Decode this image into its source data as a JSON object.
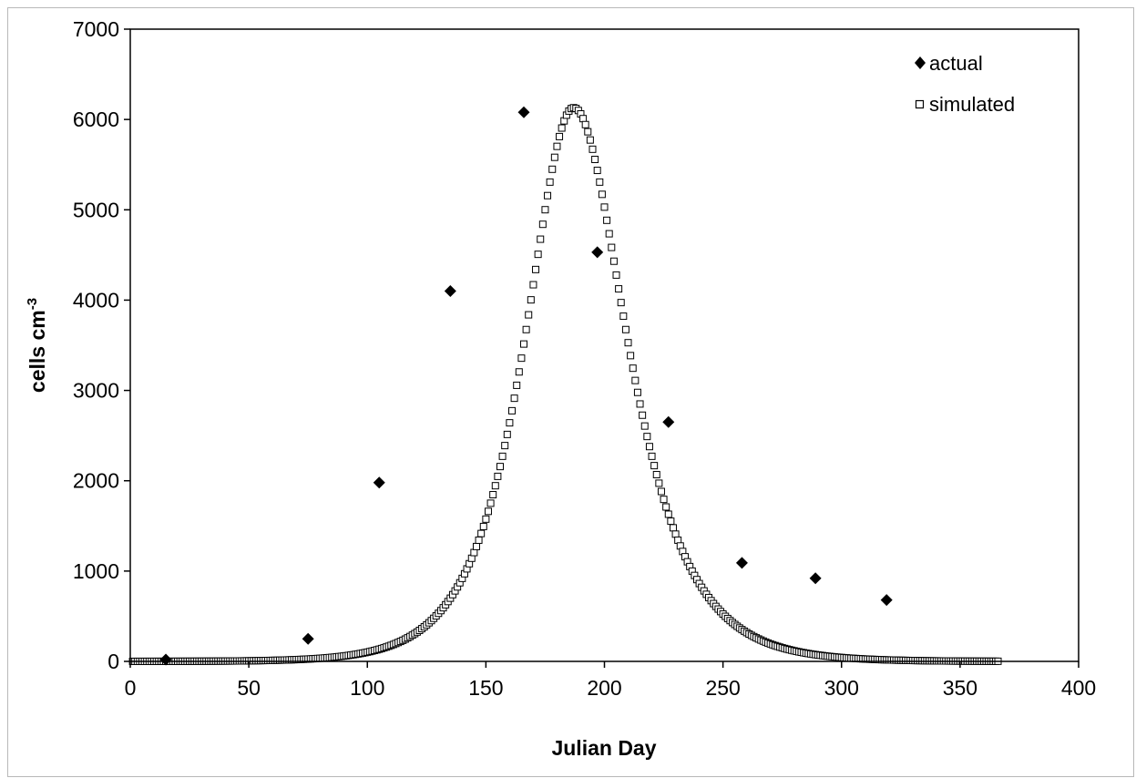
{
  "chart_data": {
    "type": "scatter",
    "title": "",
    "xlabel": "Julian Day",
    "ylabel": "cells cm",
    "ylabel_superscript": "-3",
    "xlim": [
      0,
      400
    ],
    "ylim": [
      0,
      7000
    ],
    "xticks": [
      0,
      50,
      100,
      150,
      200,
      250,
      300,
      350,
      400
    ],
    "yticks": [
      0,
      1000,
      2000,
      3000,
      4000,
      5000,
      6000,
      7000
    ],
    "grid": false,
    "legend_position": "top-right",
    "series": [
      {
        "name": "actual",
        "marker": "filled-diamond",
        "color": "#000000",
        "points": [
          [
            15,
            20
          ],
          [
            75,
            250
          ],
          [
            105,
            1980
          ],
          [
            135,
            4100
          ],
          [
            166,
            6080
          ],
          [
            197,
            4530
          ],
          [
            227,
            2650
          ],
          [
            258,
            1090
          ],
          [
            289,
            920
          ],
          [
            319,
            680
          ]
        ]
      },
      {
        "name": "simulated",
        "marker": "open-square",
        "color": "#000000",
        "model": {
          "description": "daily simulated values, day 1 to 366",
          "x_start": 1,
          "x_end": 366,
          "x_step": 1,
          "peak_day": 187,
          "peak_value": 6130,
          "form": "peak_value / cosh(k * (x - peak_day))",
          "k_before_peak": 0.055,
          "k_after_peak": 0.05
        }
      }
    ]
  }
}
